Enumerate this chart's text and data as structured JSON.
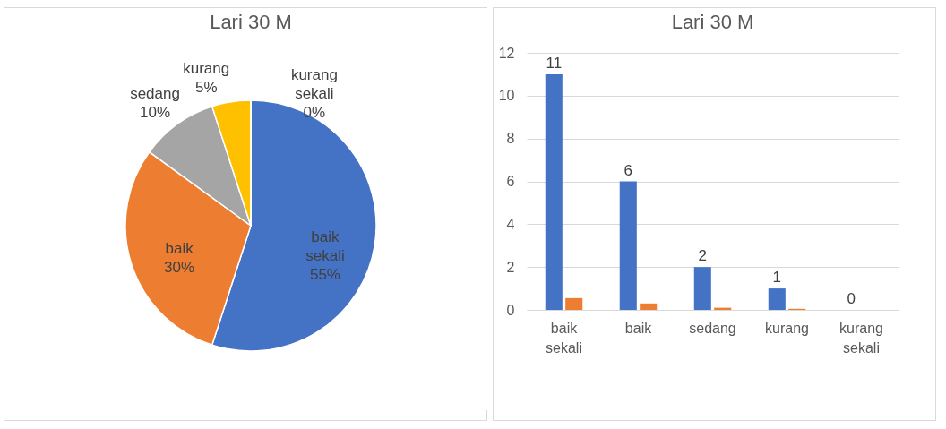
{
  "chart_data": [
    {
      "type": "pie",
      "title": "Lari 30 M",
      "categories": [
        "baik sekali",
        "baik",
        "sedang",
        "kurang",
        "kurang sekali"
      ],
      "values": [
        55,
        30,
        10,
        5,
        0
      ],
      "value_labels": [
        "55%",
        "30%",
        "10%",
        "5%",
        "0%"
      ],
      "colors": [
        "#4472c4",
        "#ed7d31",
        "#a5a5a5",
        "#ffc000",
        "#5b9bd5"
      ],
      "legend": false
    },
    {
      "type": "bar",
      "title": "Lari 30 M",
      "categories": [
        "baik sekali",
        "baik",
        "sedang",
        "kurang",
        "kurang sekali"
      ],
      "series": [
        {
          "color": "#4472c4",
          "values": [
            11,
            6,
            2,
            1,
            0
          ],
          "value_labels": [
            "11",
            "6",
            "2",
            "1",
            "0"
          ]
        },
        {
          "color": "#ed7d31",
          "values": [
            0.55,
            0.3,
            0.1,
            0.05,
            0
          ]
        }
      ],
      "ylim": [
        0,
        12
      ],
      "yticks": [
        0,
        2,
        4,
        6,
        8,
        10,
        12
      ],
      "grid": "y",
      "legend": false
    }
  ]
}
